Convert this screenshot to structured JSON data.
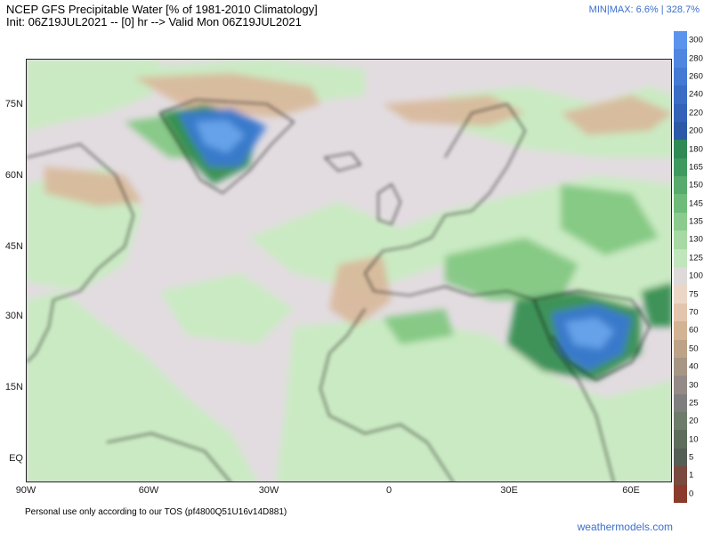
{
  "header": {
    "title": "NCEP GFS Precipitable Water [% of 1981-2010 Climatology]",
    "init_line": "Init: 06Z19JUL2021 -- [0] hr --> Valid Mon 06Z19JUL2021",
    "minmax": "MIN|MAX: 6.6% | 328.7%"
  },
  "map": {
    "lat_labels": [
      "75N",
      "60N",
      "45N",
      "30N",
      "15N",
      "EQ"
    ],
    "lon_labels": [
      "90W",
      "60W",
      "30W",
      "0",
      "30E",
      "60E"
    ],
    "colors": {
      "ocean_bg": "#e2dce0",
      "coast": "#111111",
      "light_green": "#c8ecc0",
      "mid_green": "#7fc77f",
      "dark_green": "#2e8b4a",
      "blue": "#3a78d8",
      "light_blue": "#6aa6ec",
      "tan": "#d8b89a"
    }
  },
  "colorbar": {
    "labels": [
      "300",
      "280",
      "260",
      "240",
      "220",
      "200",
      "180",
      "165",
      "150",
      "145",
      "135",
      "130",
      "125",
      "100",
      "75",
      "70",
      "60",
      "50",
      "40",
      "30",
      "25",
      "20",
      "10",
      "5",
      "1",
      "0"
    ],
    "colors": [
      "#5b94ec",
      "#4f86e0",
      "#4479d4",
      "#3a6ec6",
      "#3263b8",
      "#2d5aa8",
      "#2f8a55",
      "#3f9a5f",
      "#57ab6c",
      "#6fbc7a",
      "#8bcb8d",
      "#a6d9a3",
      "#c0e6bb",
      "#dedad9",
      "#ecd7c6",
      "#e3c5ad",
      "#d2b394",
      "#bda388",
      "#a89685",
      "#948b86",
      "#7f7f80",
      "#6e7d6b",
      "#5d6f5c",
      "#555f56",
      "#7a4a3e",
      "#8a3b2b"
    ]
  },
  "footer": {
    "note": "Personal use only according to our TOS (pf4800Q51U16v14D881)",
    "brand": "weathermodels.com"
  }
}
